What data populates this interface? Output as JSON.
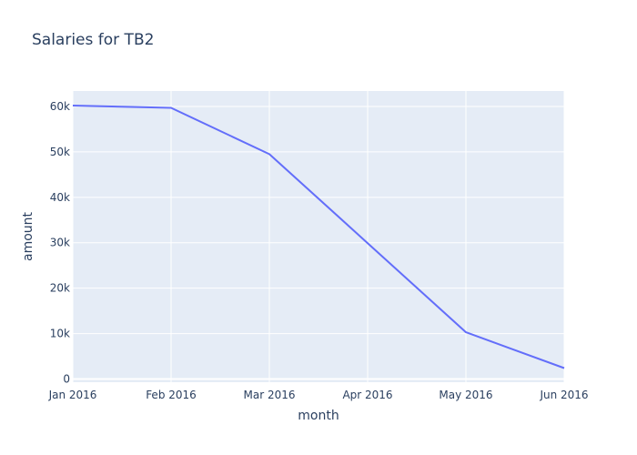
{
  "chart_data": {
    "type": "line",
    "title": "Salaries for TB2",
    "xlabel": "month",
    "ylabel": "amount",
    "x": [
      "2016-01-01",
      "2016-02-01",
      "2016-03-01",
      "2016-04-01",
      "2016-05-01",
      "2016-06-01"
    ],
    "x_tick_labels": [
      "Jan 2016",
      "Feb 2016",
      "Mar 2016",
      "Apr 2016",
      "May 2016",
      "Jun 2016"
    ],
    "y_tick_values": [
      0,
      10000,
      20000,
      30000,
      40000,
      50000,
      60000
    ],
    "y_tick_labels": [
      "0",
      "10k",
      "20k",
      "30k",
      "40k",
      "50k",
      "60k"
    ],
    "ylim": [
      -700,
      63400
    ],
    "series": [
      {
        "values": [
          60200,
          59700,
          49500,
          29900,
          10300,
          2400
        ]
      }
    ],
    "grid": true,
    "colors": {
      "line": "#636efa",
      "plot_bg": "#e5ecf6",
      "grid": "#ffffff",
      "text": "#2a3f5f"
    }
  }
}
